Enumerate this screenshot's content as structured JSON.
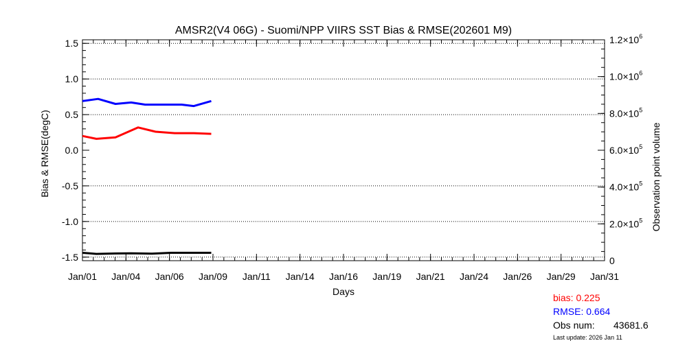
{
  "chart_data": {
    "type": "line",
    "title": "AMSR2(V4 06G) - Suomi/NPP VIIRS SST Bias & RMSE(202601 M9)",
    "xlabel": "Days",
    "ylabel": "Bias & RMSE(degC)",
    "y2label": "Observation point volume",
    "x_ticks": [
      "Jan/01",
      "Jan/04",
      "Jan/06",
      "Jan/09",
      "Jan/11",
      "Jan/14",
      "Jan/16",
      "Jan/19",
      "Jan/21",
      "Jan/24",
      "Jan/26",
      "Jan/29",
      "Jan/31"
    ],
    "xlim": [
      1,
      31
    ],
    "ylim": [
      -1.55,
      1.55
    ],
    "y_ticks": [
      1.5,
      1.0,
      0.5,
      0.0,
      -0.5,
      -1.0,
      -1.5
    ],
    "y_tick_labels": [
      "1.5",
      "1.0",
      "0.5",
      "0.0",
      "-0.5",
      "-1.0",
      "-1.5"
    ],
    "y2lim": [
      0,
      1200000
    ],
    "y2_ticks": [
      1200000,
      1000000,
      800000,
      600000,
      400000,
      200000,
      0
    ],
    "y2_tick_mantissas": [
      "1.2×10",
      "1.0×10",
      "8.0×10",
      "6.0×10",
      "4.0×10",
      "2.0×10",
      "0"
    ],
    "y2_tick_exponents": [
      "6",
      "6",
      "5",
      "5",
      "5",
      "5",
      ""
    ],
    "grid": "horizontal-dotted",
    "series": [
      {
        "key": "bias",
        "color": "#ff0000",
        "axis": "left",
        "x": [
          1,
          1.8,
          2.9,
          4.2,
          5.2,
          6.3,
          7.4,
          8.4
        ],
        "values": [
          0.2,
          0.16,
          0.18,
          0.32,
          0.26,
          0.24,
          0.24,
          0.23
        ]
      },
      {
        "key": "rmse",
        "color": "#0000ff",
        "axis": "left",
        "x": [
          1,
          1.9,
          2.9,
          3.8,
          4.6,
          5.6,
          6.7,
          7.4,
          8.4
        ],
        "values": [
          0.69,
          0.72,
          0.65,
          0.67,
          0.64,
          0.64,
          0.64,
          0.62,
          0.69
        ]
      },
      {
        "key": "obs",
        "color": "#000000",
        "axis": "right",
        "x": [
          1,
          1.8,
          2.9,
          3.8,
          5.0,
          6.1,
          7.2,
          8.4
        ],
        "values": [
          43000,
          37000,
          39000,
          40000,
          38000,
          43000,
          43000,
          43000
        ]
      }
    ]
  },
  "stats": {
    "bias": "bias: 0.225",
    "rmse": "RMSE: 0.664",
    "obs_label": "Obs num:",
    "obs_value": "43681.6",
    "update": "Last update: 2026 Jan 11"
  }
}
